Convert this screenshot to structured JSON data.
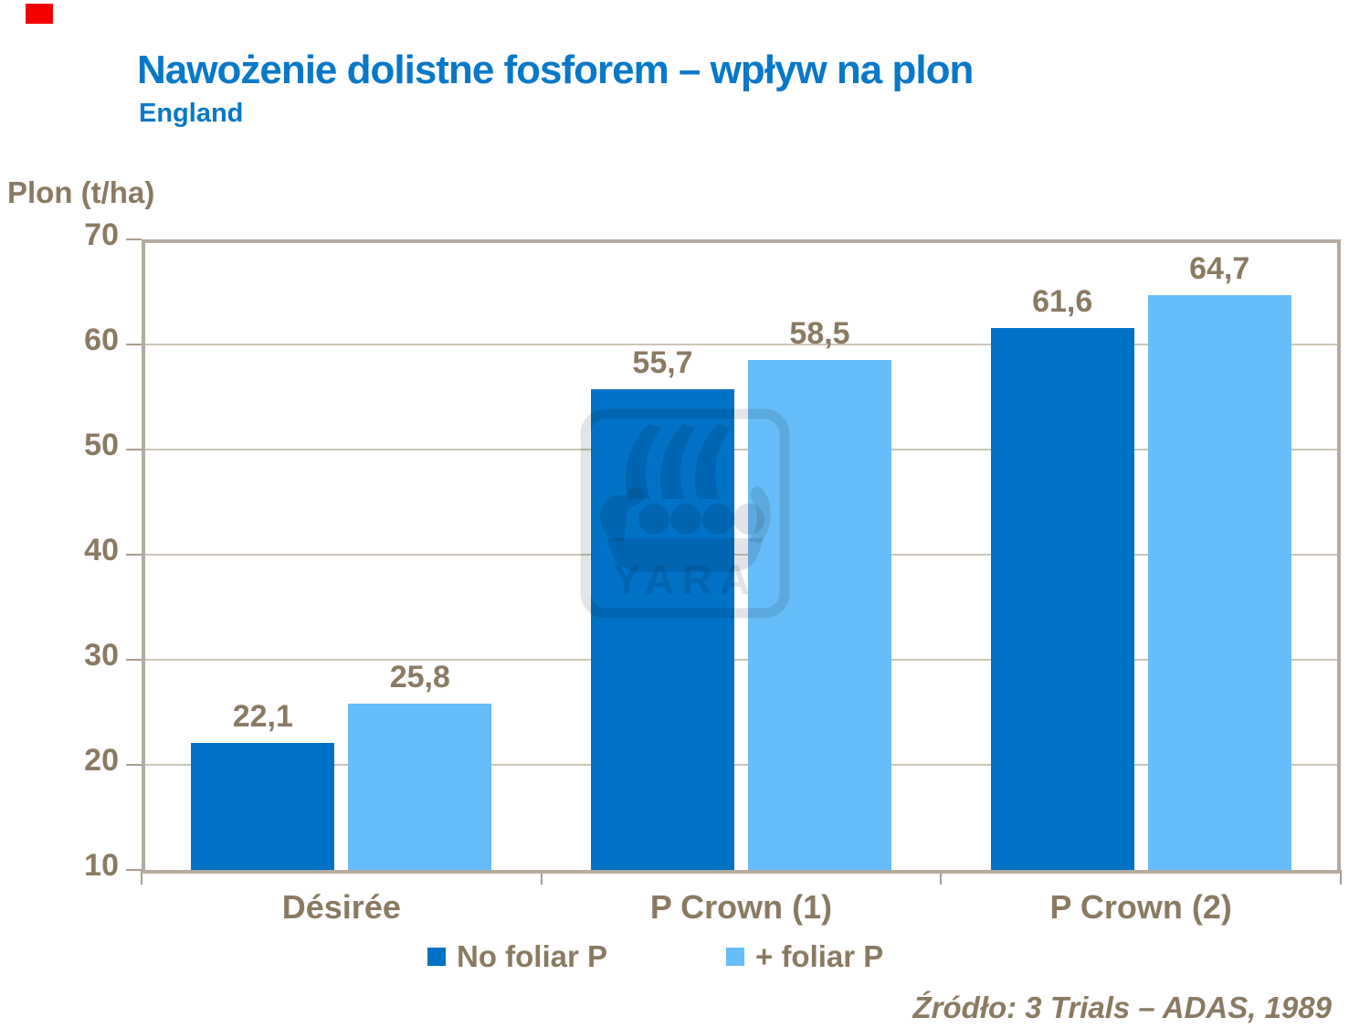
{
  "slide": {
    "title": "Nawożenie dolistne fosforem – wpływ na plon",
    "subtitle": "England",
    "accent_marker_color": "#F40000"
  },
  "watermark": {
    "name": "yara-logo",
    "text": "YARA"
  },
  "colors": {
    "title_blue": "#0878C8",
    "text_brown": "#8A7A62",
    "axis_border": "#B5ABA0",
    "gridline": "#CCC5B9",
    "tick": "#A79D8F",
    "series_dark_blue": "#0072C6",
    "series_light_blue": "#66BDF9"
  },
  "chart_data": {
    "type": "bar",
    "title": "Nawożenie dolistne fosforem – wpływ na plon",
    "subtitle": "England",
    "ylabel": "Plon (t/ha)",
    "xlabel": "",
    "categories": [
      "Désirée",
      "P Crown (1)",
      "P Crown (2)"
    ],
    "series": [
      {
        "name": "No foliar P",
        "color": "#0072C6",
        "values": [
          22.1,
          55.7,
          61.6
        ],
        "labels": [
          "22,1",
          "55,7",
          "61,6"
        ]
      },
      {
        "name": "+ foliar P",
        "color": "#66BDF9",
        "values": [
          25.8,
          58.5,
          64.7
        ],
        "labels": [
          "25,8",
          "58,5",
          "64,7"
        ]
      }
    ],
    "ylim": [
      10,
      70
    ],
    "yticks": [
      10,
      20,
      30,
      40,
      50,
      60,
      70
    ],
    "grid": true,
    "legend_position": "bottom",
    "source": "Źródło: 3 Trials – ADAS, 1989"
  }
}
